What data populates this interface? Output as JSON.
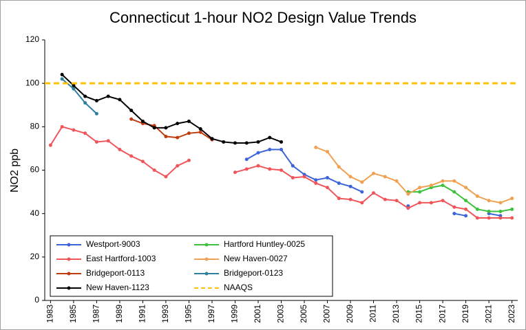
{
  "chart_data": {
    "type": "line",
    "title": "Connecticut 1-hour NO2 Design Value Trends",
    "y_label": "NO2 ppb",
    "x": [
      1983,
      1984,
      1985,
      1986,
      1987,
      1988,
      1989,
      1990,
      1991,
      1992,
      1993,
      1994,
      1995,
      1996,
      1997,
      1998,
      1999,
      2000,
      2001,
      2002,
      2003,
      2004,
      2005,
      2006,
      2007,
      2008,
      2009,
      2010,
      2011,
      2012,
      2013,
      2014,
      2015,
      2016,
      2017,
      2018,
      2019,
      2020,
      2021,
      2022,
      2023
    ],
    "xlim": [
      1982.5,
      2023.5
    ],
    "xticks": [
      1983,
      1985,
      1987,
      1989,
      1991,
      1993,
      1995,
      1997,
      1999,
      2001,
      2003,
      2005,
      2007,
      2009,
      2011,
      2013,
      2015,
      2017,
      2019,
      2021,
      2023
    ],
    "ylim": [
      0,
      120
    ],
    "yticks": [
      0,
      20,
      40,
      60,
      80,
      100,
      120
    ],
    "grid": false,
    "legend": "bottom-left",
    "series": [
      {
        "name": "Westport-9003",
        "color": "#3b64d8",
        "values": [
          null,
          null,
          null,
          null,
          null,
          null,
          null,
          null,
          null,
          null,
          null,
          null,
          null,
          null,
          null,
          null,
          null,
          65,
          68,
          69.5,
          69.5,
          62,
          58,
          55.5,
          56.5,
          54,
          52.5,
          50,
          null,
          null,
          null,
          43.5,
          null,
          null,
          null,
          40,
          39,
          null,
          40,
          39,
          null
        ]
      },
      {
        "name": "Hartford Huntley-0025",
        "color": "#3cc23c",
        "values": [
          null,
          null,
          null,
          null,
          null,
          null,
          null,
          null,
          null,
          null,
          null,
          null,
          null,
          null,
          null,
          null,
          null,
          null,
          null,
          null,
          null,
          null,
          null,
          null,
          null,
          null,
          null,
          null,
          null,
          null,
          null,
          50,
          50,
          52,
          53,
          50,
          46,
          42,
          41,
          41,
          42
        ]
      },
      {
        "name": "East Hartford-1003",
        "color": "#f0555a",
        "values": [
          71.5,
          80,
          78.5,
          77,
          73,
          73.5,
          69.5,
          66.5,
          64,
          60,
          57,
          62,
          64.5,
          null,
          null,
          null,
          59,
          60.5,
          62,
          60.5,
          60,
          56.5,
          57,
          54,
          52,
          47,
          46.5,
          45,
          49.5,
          46.5,
          46,
          42.5,
          45,
          45,
          46,
          43,
          42,
          38,
          38,
          38,
          38
        ]
      },
      {
        "name": "New Haven-0027",
        "color": "#f0a050",
        "values": [
          null,
          null,
          null,
          null,
          null,
          null,
          null,
          null,
          null,
          null,
          null,
          null,
          null,
          null,
          null,
          null,
          null,
          null,
          null,
          null,
          null,
          null,
          null,
          70.5,
          68.5,
          61.5,
          57,
          54.5,
          58.5,
          57,
          55,
          49,
          52,
          53,
          55,
          55,
          52,
          48,
          46,
          45,
          47
        ]
      },
      {
        "name": "Bridgeport-0113",
        "color": "#c23b0f",
        "values": [
          null,
          null,
          null,
          null,
          null,
          null,
          null,
          83.5,
          81.5,
          80.5,
          75.5,
          75,
          77,
          77.5,
          74,
          null,
          null,
          null,
          null,
          null,
          null,
          null,
          null,
          null,
          null,
          null,
          null,
          null,
          null,
          null,
          null,
          null,
          null,
          null,
          null,
          null,
          null,
          null,
          null,
          null,
          null
        ]
      },
      {
        "name": "Bridgeport-0123",
        "color": "#2e7fa0",
        "values": [
          null,
          102,
          97.5,
          91,
          86,
          null,
          null,
          null,
          null,
          null,
          null,
          null,
          null,
          null,
          null,
          null,
          null,
          null,
          null,
          null,
          null,
          null,
          null,
          null,
          null,
          null,
          null,
          null,
          null,
          null,
          null,
          null,
          null,
          null,
          null,
          null,
          null,
          null,
          null,
          null,
          null
        ]
      },
      {
        "name": "New Haven-1123",
        "color": "#000000",
        "values": [
          null,
          104,
          99,
          94,
          92,
          94,
          92.5,
          87.5,
          82.5,
          79.5,
          79.5,
          81.5,
          82.5,
          79,
          74.5,
          73,
          72.5,
          72.5,
          73,
          75,
          73,
          null,
          null,
          null,
          null,
          null,
          null,
          null,
          null,
          null,
          null,
          null,
          null,
          null,
          null,
          null,
          null,
          null,
          null,
          null,
          null
        ]
      },
      {
        "name": "NAAQS",
        "color": "#ffc000",
        "dashed": true,
        "value": 100
      }
    ]
  }
}
